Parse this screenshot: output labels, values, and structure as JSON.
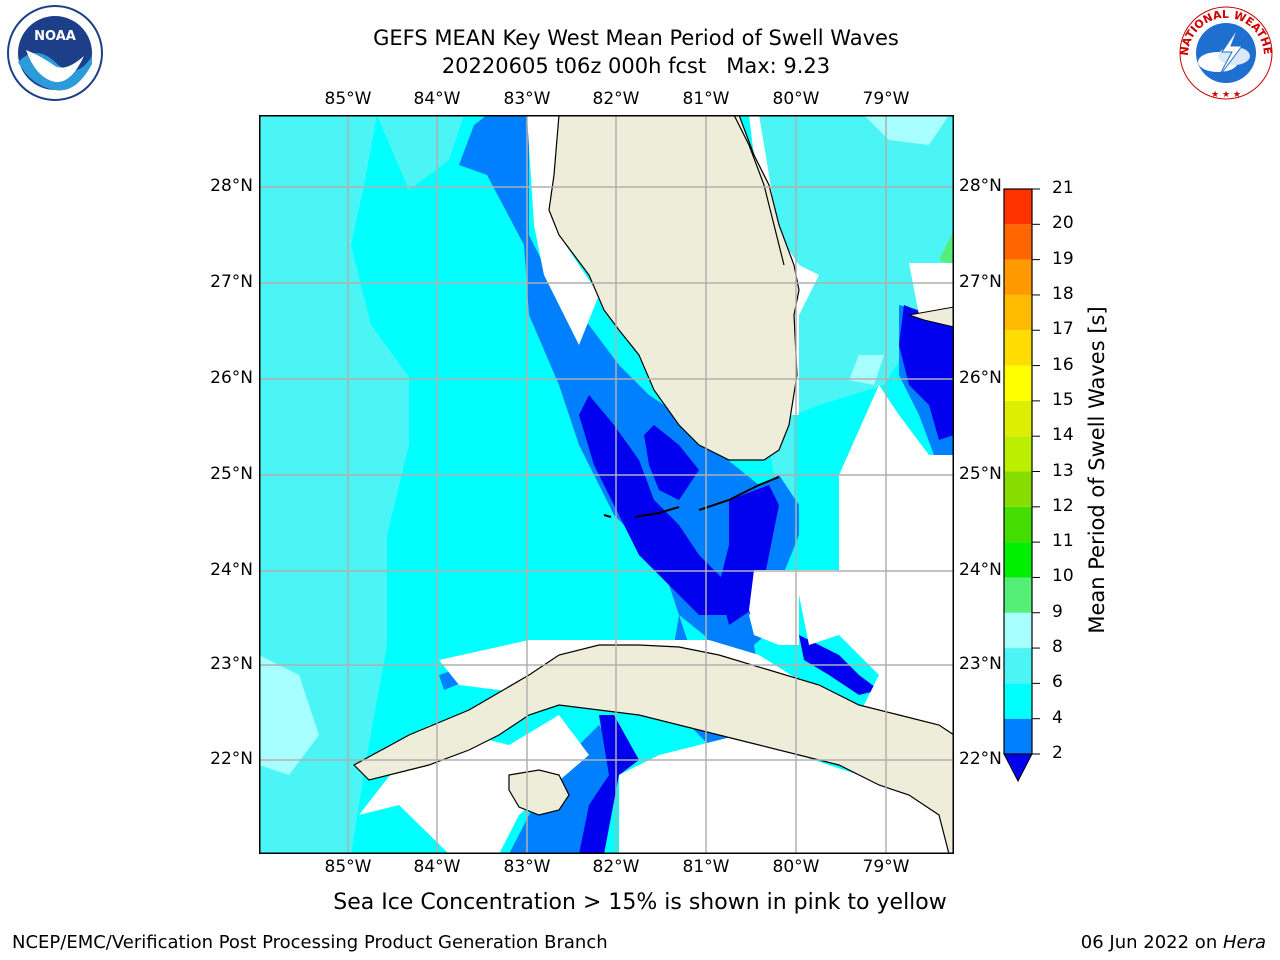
{
  "title": {
    "line1": "GEFS MEAN Key West Mean Period of Swell Waves",
    "line2": "20220605 t06z 000h fcst   Max: 9.23"
  },
  "map": {
    "lon_ticks": [
      "85°W",
      "84°W",
      "83°W",
      "82°W",
      "81°W",
      "80°W",
      "79°W"
    ],
    "lat_ticks": [
      "28°N",
      "27°N",
      "26°N",
      "25°N",
      "24°N",
      "23°N",
      "22°N"
    ],
    "colors": {
      "land": "#eeedda",
      "no_data": "#ffffff",
      "band_4_6": "#00ffff",
      "band_6_8": "#4cf5f5",
      "band_8_9": "#a8ffff",
      "band_9_10": "#55ee77",
      "band_2_4": "#0080ff",
      "band_lt2": "#0000ee",
      "grid": "#b0b0b0",
      "coast": "#000000"
    }
  },
  "colorbar": {
    "label": "Mean Period of Swell Waves [s]",
    "ticks": [
      "2",
      "4",
      "6",
      "8",
      "9",
      "10",
      "11",
      "12",
      "13",
      "14",
      "15",
      "16",
      "17",
      "18",
      "19",
      "20",
      "21"
    ],
    "colors": [
      "#0080ff",
      "#00ffff",
      "#4cf5f5",
      "#a8ffff",
      "#55ee77",
      "#00ee00",
      "#44dd00",
      "#88dd00",
      "#bbee00",
      "#ddee00",
      "#ffff00",
      "#ffdd00",
      "#ffbb00",
      "#ff9900",
      "#ff6600",
      "#ff3300",
      "#ff0000"
    ],
    "under_color": "#0000ee"
  },
  "logos": {
    "noaa_text": "NOAA",
    "nws_text": "NATIONAL WEATHER SERVICE"
  },
  "footnote": "Sea Ice Concentration > 15% is shown in pink to yellow",
  "footer": {
    "left": "NCEP/EMC/Verification Post Processing Product Generation Branch",
    "right_date": "06 Jun 2022 on ",
    "right_host": "Hera"
  }
}
